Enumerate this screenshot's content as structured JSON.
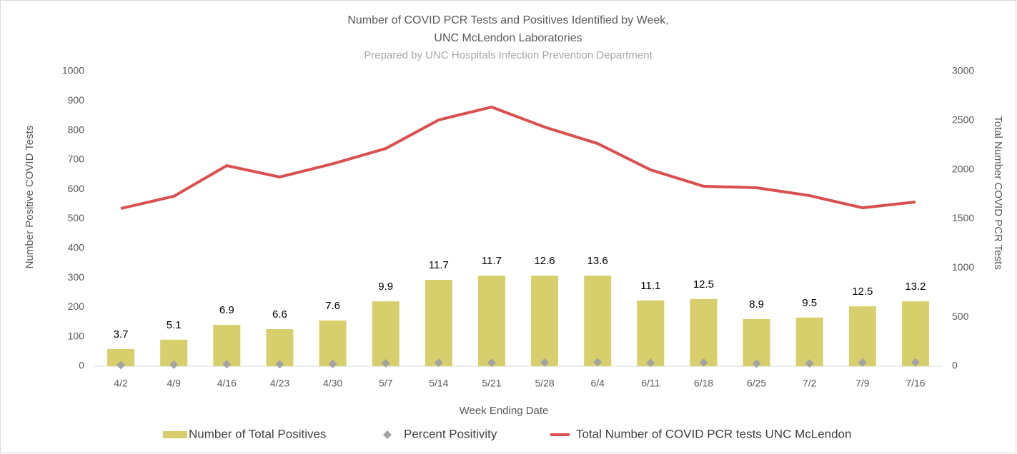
{
  "chart_data": {
    "type": "combo",
    "title": [
      "Number of COVID PCR Tests and Positives Identified by Week,",
      "UNC McLendon Laboratories"
    ],
    "subtitle": "Prepared by UNC Hospitals Infection Prevention Department",
    "x_label": "Week Ending Date",
    "y_label": "Number Positive COVID Tests",
    "y2_label": "Total Number COVID PCR Tests",
    "categories": [
      "4/2",
      "4/9",
      "4/16",
      "4/23",
      "4/30",
      "5/7",
      "5/14",
      "5/21",
      "5/28",
      "6/4",
      "6/11",
      "6/18",
      "6/25",
      "7/2",
      "7/9",
      "7/16"
    ],
    "ylim": [
      0,
      1000
    ],
    "yticks": [
      0,
      100,
      200,
      300,
      400,
      500,
      600,
      700,
      800,
      900,
      1000
    ],
    "y2lim": [
      0,
      3000
    ],
    "y2ticks": [
      0,
      500,
      1000,
      1500,
      2000,
      2500,
      3000
    ],
    "legend": "bottom",
    "series": [
      {
        "name": "Number of Total Positives",
        "type": "bar",
        "color": "#d6cf6c",
        "values": [
          58,
          90,
          140,
          126,
          155,
          220,
          293,
          307,
          307,
          307,
          223,
          228,
          160,
          165,
          203,
          220
        ]
      },
      {
        "name": "Percent Positivity",
        "type": "scatter",
        "color": "#a3a3a3",
        "values": [
          3.7,
          5.1,
          6.9,
          6.6,
          7.6,
          9.9,
          11.7,
          11.7,
          12.6,
          13.6,
          11.1,
          12.5,
          8.9,
          9.5,
          12.5,
          13.2
        ]
      },
      {
        "name": "Total Number of COVID PCR tests UNC McLendon",
        "type": "line",
        "color": "#d9504e",
        "axis": "y2",
        "values": [
          1605,
          1729,
          2041,
          1925,
          2060,
          2215,
          2506,
          2637,
          2433,
          2266,
          1998,
          1831,
          1816,
          1736,
          1612,
          1671
        ]
      }
    ]
  }
}
